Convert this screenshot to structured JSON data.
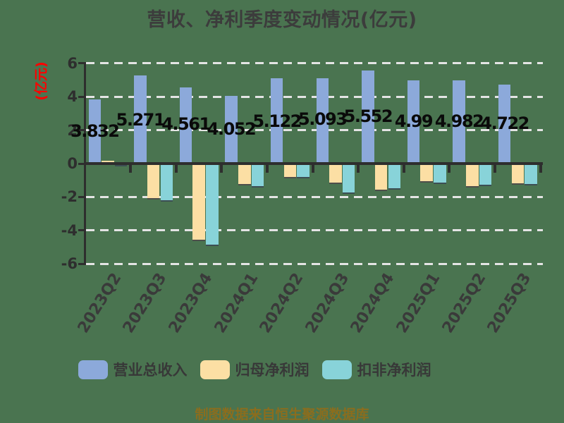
{
  "title": "营收、净利季度变动情况(亿元)",
  "footer": "制图数据来自恒生聚源数据库",
  "colors": {
    "background": "#4A7450",
    "axis": "#2E2E2E",
    "gridline": "#E4E4E4",
    "title_text": "#3C3C3C",
    "value_label_text": "#0A0A0A",
    "ylabel_red": "#FF0000",
    "footer_text": "#8B6D1E"
  },
  "chart_data": {
    "type": "bar",
    "title": "营收、净利季度变动情况(亿元)",
    "ylabel": "(亿元)",
    "xlabel": "",
    "ylim": [
      -6,
      6
    ],
    "ytick_labels": [
      "6",
      "4",
      "2",
      "0",
      "-2",
      "-4",
      "-6"
    ],
    "grid": "dashed-horizontal",
    "legend_position": "bottom",
    "categories": [
      "2023Q2",
      "2023Q3",
      "2023Q4",
      "2024Q1",
      "2024Q2",
      "2024Q3",
      "2024Q4",
      "2025Q1",
      "2025Q2",
      "2025Q3"
    ],
    "series": [
      {
        "name": "营业总收入",
        "color": "#8CA9DA",
        "values": [
          3.832,
          5.271,
          4.561,
          4.052,
          5.122,
          5.093,
          5.552,
          4.99,
          4.982,
          4.722
        ]
      },
      {
        "name": "归母净利润",
        "color": "#FCDFA4",
        "values": [
          0.18,
          -2.08,
          -4.57,
          -1.24,
          -0.8,
          -1.14,
          -1.56,
          -1.07,
          -1.37,
          -1.18
        ]
      },
      {
        "name": "扣非净利润",
        "color": "#88D3D9",
        "values": [
          -0.08,
          -2.2,
          -4.85,
          -1.35,
          -0.82,
          -1.75,
          -1.48,
          -1.16,
          -1.28,
          -1.22
        ]
      }
    ],
    "bar_labels": [
      "3.832",
      "5.271",
      "4.561",
      "4.052",
      "5.122",
      "5.093",
      "5.552",
      "4.99",
      "4.982",
      "4.722"
    ]
  }
}
